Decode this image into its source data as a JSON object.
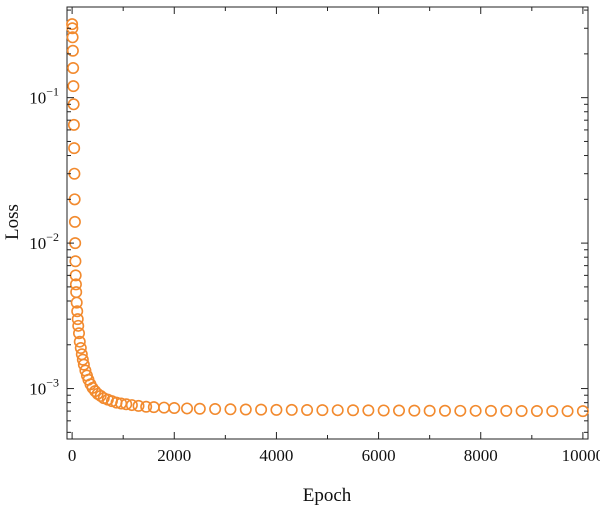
{
  "chart_data": {
    "type": "scatter",
    "xlabel": "Epoch",
    "ylabel": "Loss",
    "xlim": [
      -100,
      10100
    ],
    "ylim": [
      0.00045,
      0.42
    ],
    "yscale": "log",
    "grid": false,
    "legend": "none",
    "x_ticks": [
      {
        "value": 0,
        "label": "0"
      },
      {
        "value": 2000,
        "label": "2000"
      },
      {
        "value": 4000,
        "label": "4000"
      },
      {
        "value": 6000,
        "label": "6000"
      },
      {
        "value": 8000,
        "label": "8000"
      },
      {
        "value": 10000,
        "label": "10000"
      }
    ],
    "y_ticks": [
      {
        "value": 0.001,
        "base": "10",
        "exp": "−3"
      },
      {
        "value": 0.01,
        "base": "10",
        "exp": "−2"
      },
      {
        "value": 0.1,
        "base": "10",
        "exp": "−1"
      }
    ],
    "marker": "open-circle",
    "color": "#F28A2E",
    "series": [
      {
        "x": [
          0,
          5,
          10,
          15,
          20,
          25,
          30,
          35,
          40,
          45,
          50,
          55,
          60,
          65,
          70,
          75,
          80,
          90,
          100,
          110,
          120,
          135,
          150,
          170,
          190,
          210,
          230,
          260,
          290,
          320,
          360,
          400,
          450,
          500,
          560,
          620,
          700,
          780,
          870,
          960,
          1060,
          1170,
          1300,
          1450,
          1600,
          1800,
          2000,
          2250,
          2500,
          2800,
          3100,
          3400,
          3700,
          4000,
          4300,
          4600,
          4900,
          5200,
          5500,
          5800,
          6100,
          6400,
          6700,
          7000,
          7300,
          7600,
          7900,
          8200,
          8500,
          8800,
          9100,
          9400,
          9700,
          10000
        ],
        "y": [
          0.32,
          0.3,
          0.26,
          0.21,
          0.16,
          0.12,
          0.09,
          0.065,
          0.045,
          0.03,
          0.02,
          0.014,
          0.01,
          0.0075,
          0.006,
          0.0052,
          0.0046,
          0.0039,
          0.0034,
          0.003,
          0.0027,
          0.0024,
          0.0021,
          0.0019,
          0.00172,
          0.00158,
          0.00146,
          0.00133,
          0.00123,
          0.00115,
          0.00107,
          0.00101,
          0.00096,
          0.00092,
          0.00089,
          0.00086,
          0.00084,
          0.00082,
          0.0008,
          0.00079,
          0.00078,
          0.00077,
          0.00076,
          0.00075,
          0.000745,
          0.00074,
          0.000735,
          0.00073,
          0.000726,
          0.000723,
          0.00072,
          0.000718,
          0.000716,
          0.000714,
          0.000713,
          0.000712,
          0.000711,
          0.00071,
          0.000709,
          0.000708,
          0.000707,
          0.000706,
          0.000705,
          0.000704,
          0.000704,
          0.000703,
          0.000703,
          0.000702,
          0.000702,
          0.000701,
          0.000701,
          0.0007,
          0.0007,
          0.0007
        ]
      }
    ]
  }
}
